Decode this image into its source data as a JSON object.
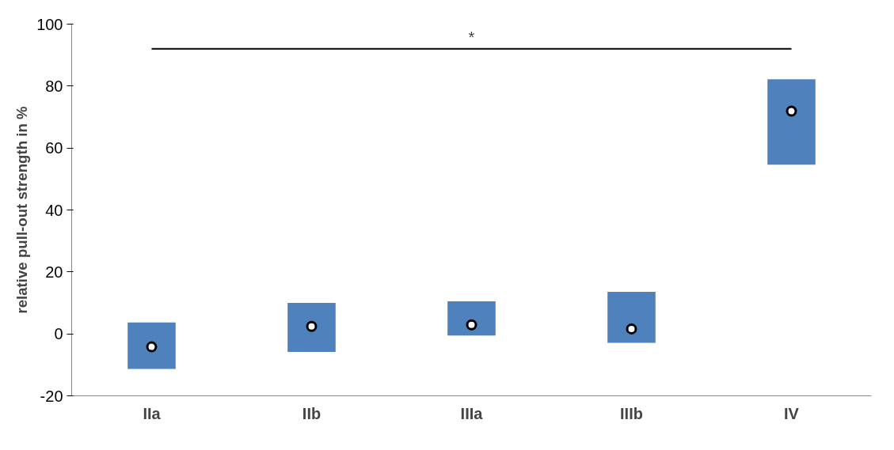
{
  "chart_data": {
    "type": "bar",
    "ylabel": "relative pull-out strength in %",
    "categories": [
      "IIa",
      "IIb",
      "IIIa",
      "IIIb",
      "IV"
    ],
    "series": [
      {
        "color": "#4f81bd",
        "base": [
          -11.3,
          -5.8,
          -0.5,
          -2.9,
          54.6
        ],
        "values": [
          15.0,
          15.8,
          11.0,
          16.5,
          27.6
        ]
      },
      {
        "type": "scatter",
        "color": "#000000",
        "marker": "circle",
        "x": [
          "IIa",
          "IIb",
          "IIIa",
          "IIIb",
          "IV"
        ],
        "values": [
          -4.2,
          2.4,
          2.9,
          1.6,
          71.9
        ]
      }
    ],
    "ylim": [
      -20,
      100
    ],
    "yticks": [
      -20,
      0,
      20,
      40,
      60,
      80,
      100
    ],
    "grid": false,
    "ref_lines": [
      {
        "axis": "y",
        "value": 92,
        "label": "*",
        "color": "#000000"
      }
    ]
  }
}
